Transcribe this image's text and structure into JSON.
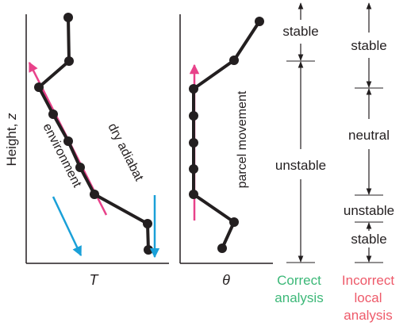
{
  "left_panel": {
    "y_axis_label": "Height, ",
    "y_axis_var": "z",
    "x_axis_label": "T",
    "environment_label": "environment",
    "dry_adiabat_label": "dry adiabat"
  },
  "middle_panel": {
    "x_axis_label": "θ",
    "parcel_label": "parcel movement"
  },
  "correct_column": {
    "stable_label": "stable",
    "unstable_label": "unstable",
    "title_line1": "Correct",
    "title_line2": "analysis"
  },
  "incorrect_column": {
    "stable_top_label": "stable",
    "neutral_label": "neutral",
    "unstable_label": "unstable",
    "stable_bottom_label": "stable",
    "title_line1": "Incorrect",
    "title_line2": "local",
    "title_line3": "analysis"
  },
  "colors": {
    "environment_line": "#231f20",
    "dry_adiabat_arrow": "#e8428a",
    "parcel_arrow": "#e8428a",
    "descending_arrows": "#1aa0d8",
    "correct_title": "#3cb878",
    "incorrect_title": "#ee5a6a"
  }
}
